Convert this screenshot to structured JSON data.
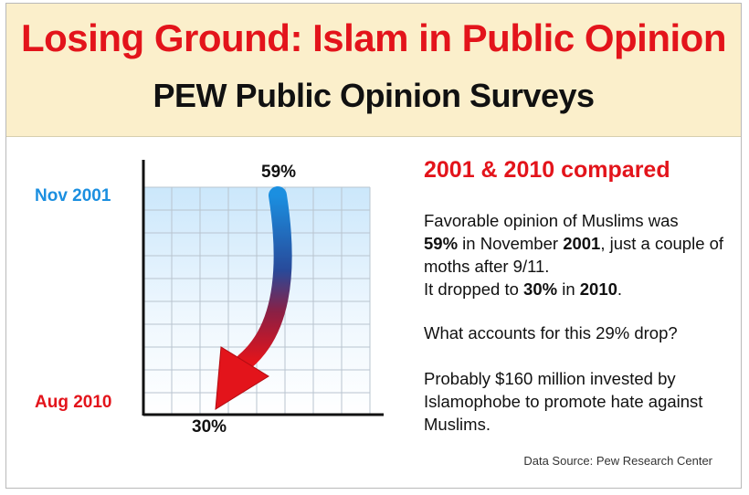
{
  "header": {
    "title": "Losing Ground: Islam in Public Opinion",
    "subtitle": "PEW Public Opinion Surveys"
  },
  "chart_data": {
    "type": "line",
    "x": [
      "Nov 2001",
      "Aug 2010"
    ],
    "values": [
      59,
      30
    ],
    "value_labels": [
      "59%",
      "30%"
    ],
    "category_labels": [
      "Nov 2001",
      "Aug 2010"
    ],
    "colors": {
      "start": "#1b8fe0",
      "end": "#e3141b"
    },
    "grid": true
  },
  "comparison": {
    "title": "2001 & 2010 compared",
    "p1": {
      "t1": "Favorable opinion of Muslims was",
      "b1": "59%",
      "t2": " in November ",
      "b2": "2001",
      "t3": ", just a couple of moths after 9/11.",
      "t4": "It dropped to ",
      "b3": "30%",
      "t5": " in ",
      "b4": "2010",
      "t6": "."
    },
    "p2": "What accounts for this 29% drop?",
    "p3": "Probably $160 million invested by Islamophobe to promote hate against Muslims."
  },
  "source": "Data Source: Pew Research Center"
}
